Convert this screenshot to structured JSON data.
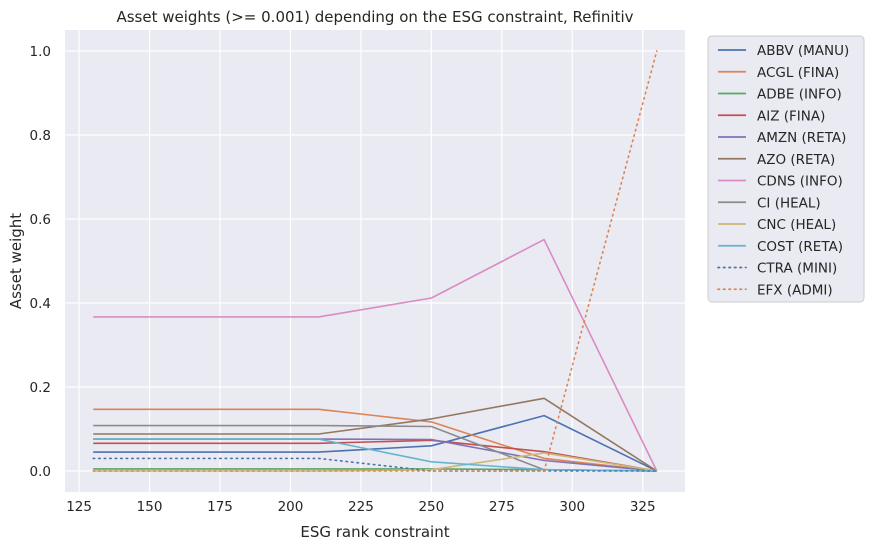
{
  "chart_data": {
    "type": "line",
    "title": "Asset weights (>= 0.001) depending on the ESG constraint, Refinitiv",
    "xlabel": "ESG rank constraint",
    "ylabel": "Asset weight",
    "xlim": [
      120,
      340
    ],
    "ylim": [
      -0.05,
      1.05
    ],
    "xticks": [
      125,
      150,
      175,
      200,
      225,
      250,
      275,
      300,
      325
    ],
    "yticks": [
      0.0,
      0.2,
      0.4,
      0.6,
      0.8,
      1.0
    ],
    "x": [
      130,
      210,
      250,
      290,
      330
    ],
    "grid": true,
    "legend_position": "outside-right",
    "series": [
      {
        "name": "ABBV (MANU)",
        "color": "#4c72b0",
        "dash": "solid",
        "values": [
          0.045,
          0.045,
          0.06,
          0.132,
          0.0
        ]
      },
      {
        "name": "ACGL (FINA)",
        "color": "#dd8452",
        "dash": "solid",
        "values": [
          0.147,
          0.147,
          0.117,
          0.03,
          0.0
        ]
      },
      {
        "name": "ADBE (INFO)",
        "color": "#55a868",
        "dash": "solid",
        "values": [
          0.005,
          0.005,
          0.005,
          0.003,
          0.0
        ]
      },
      {
        "name": "AIZ (FINA)",
        "color": "#c44e52",
        "dash": "solid",
        "values": [
          0.066,
          0.066,
          0.073,
          0.046,
          0.0
        ]
      },
      {
        "name": "AMZN (RETA)",
        "color": "#8172b3",
        "dash": "solid",
        "values": [
          0.076,
          0.076,
          0.075,
          0.025,
          0.0
        ]
      },
      {
        "name": "AZO (RETA)",
        "color": "#937860",
        "dash": "solid",
        "values": [
          0.088,
          0.088,
          0.124,
          0.173,
          0.0
        ]
      },
      {
        "name": "CDNS (INFO)",
        "color": "#da8bc3",
        "dash": "solid",
        "values": [
          0.367,
          0.367,
          0.412,
          0.551,
          0.0
        ]
      },
      {
        "name": "CI (HEAL)",
        "color": "#8c8c8c",
        "dash": "solid",
        "values": [
          0.108,
          0.108,
          0.106,
          0.003,
          0.0
        ]
      },
      {
        "name": "CNC (HEAL)",
        "color": "#ccb974",
        "dash": "solid",
        "values": [
          0.0,
          0.0,
          0.003,
          0.043,
          0.0
        ]
      },
      {
        "name": "COST (RETA)",
        "color": "#64b5cd",
        "dash": "solid",
        "values": [
          0.076,
          0.076,
          0.022,
          0.003,
          0.0
        ]
      },
      {
        "name": "CTRA (MINI)",
        "color": "#4c72b0",
        "dash": "dotted",
        "values": [
          0.03,
          0.03,
          0.0,
          0.0,
          0.0
        ]
      },
      {
        "name": "EFX (ADMI)",
        "color": "#dd8452",
        "dash": "dotted",
        "values": [
          0.0,
          0.0,
          0.0,
          0.0,
          1.0
        ]
      }
    ]
  }
}
